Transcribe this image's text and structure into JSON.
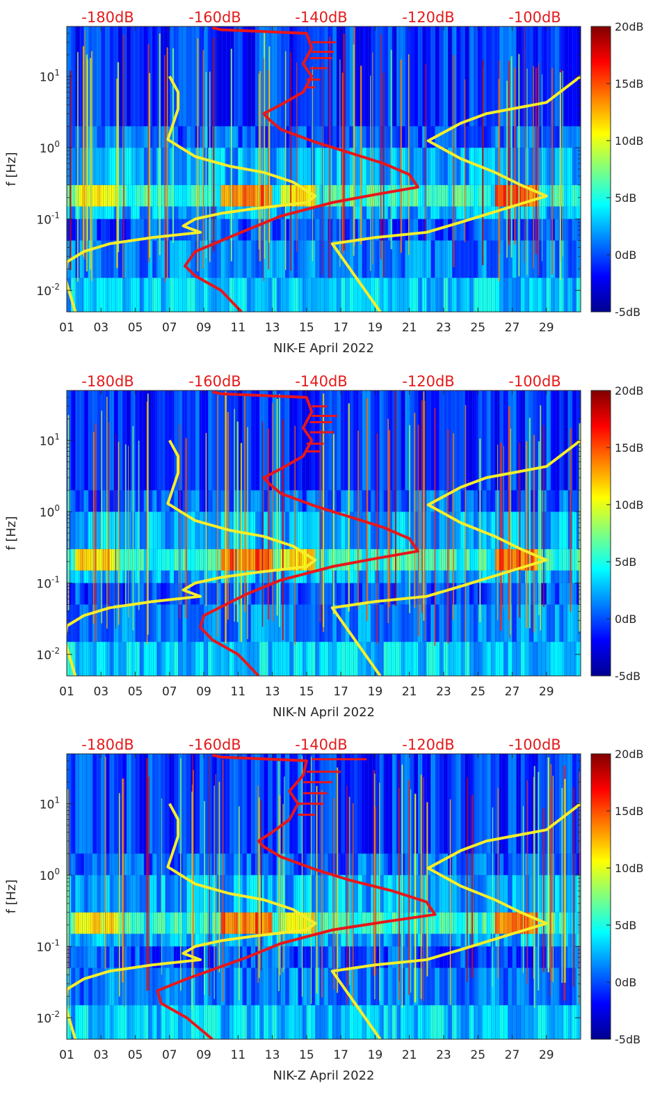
{
  "colors": {
    "yellow_curve": "#f7ee2a",
    "red_curve": "#e8161a",
    "top_label": "#e41a1a",
    "axis": "#262626"
  },
  "chart_data": [
    {
      "type": "heatmap",
      "station": "NIK-E",
      "xlabel": "NIK-E April 2022",
      "ylabel": "f [Hz]",
      "x_ticks": [
        "01",
        "03",
        "05",
        "07",
        "09",
        "11",
        "13",
        "15",
        "17",
        "19",
        "21",
        "23",
        "25",
        "27",
        "29"
      ],
      "y_ticks": [
        "10-2",
        "10-1",
        "100",
        "101"
      ],
      "y_scale": "log",
      "ylim": [
        0.005,
        50
      ],
      "xlim": [
        1,
        31
      ],
      "top_scale_labels": [
        "-180dB",
        "-160dB",
        "-140dB",
        "-120dB",
        "-100dB"
      ],
      "colorbar": {
        "ticks": [
          "20dB",
          "15dB",
          "10dB",
          "5dB",
          "0dB",
          "-5dB"
        ],
        "range": [
          -5,
          20
        ],
        "colormap": "jet"
      },
      "yellow_curve": [
        [
          7.0,
          10
        ],
        [
          7.5,
          6
        ],
        [
          7.5,
          3.5
        ],
        [
          6.9,
          1.3
        ],
        [
          8.5,
          0.75
        ],
        [
          10.5,
          0.55
        ],
        [
          12.5,
          0.45
        ],
        [
          14.2,
          0.33
        ],
        [
          15.5,
          0.21
        ],
        [
          15.0,
          0.17
        ],
        [
          12.0,
          0.14
        ],
        [
          10.0,
          0.12
        ],
        [
          8.5,
          0.1
        ],
        [
          7.8,
          0.08
        ],
        [
          8.8,
          0.065
        ],
        [
          6.0,
          0.055
        ],
        [
          3.5,
          0.045
        ],
        [
          2.0,
          0.035
        ],
        [
          1.0,
          0.025
        ],
        [
          0.9,
          0.015
        ],
        [
          1.5,
          0.005
        ]
      ],
      "yellow_curve_right": [
        [
          19.3,
          0.005
        ],
        [
          16.5,
          0.045
        ],
        [
          19.0,
          0.055
        ],
        [
          22.0,
          0.065
        ],
        [
          24.0,
          0.09
        ],
        [
          27.0,
          0.15
        ],
        [
          29.0,
          0.21
        ],
        [
          27.5,
          0.3
        ],
        [
          26.0,
          0.45
        ],
        [
          24.0,
          0.7
        ],
        [
          22.1,
          1.25
        ],
        [
          24.0,
          2.2
        ],
        [
          25.5,
          3.0
        ],
        [
          29.0,
          4.3
        ],
        [
          31.0,
          10
        ]
      ],
      "red_curve": [
        [
          11.2,
          0.005
        ],
        [
          10.0,
          0.01
        ],
        [
          8.5,
          0.016
        ],
        [
          7.9,
          0.022
        ],
        [
          8.5,
          0.035
        ],
        [
          11.5,
          0.07
        ],
        [
          13.5,
          0.11
        ],
        [
          16.5,
          0.17
        ],
        [
          19.0,
          0.22
        ],
        [
          21.5,
          0.28
        ],
        [
          21.0,
          0.42
        ],
        [
          19.5,
          0.6
        ],
        [
          17.5,
          0.85
        ],
        [
          15.5,
          1.2
        ],
        [
          13.5,
          1.8
        ],
        [
          12.8,
          2.5
        ],
        [
          12.5,
          3.0
        ],
        [
          13.5,
          4.0
        ],
        [
          14.8,
          6.0
        ],
        [
          15.3,
          10
        ],
        [
          14.8,
          15
        ],
        [
          15.3,
          25
        ],
        [
          15.0,
          40
        ],
        [
          10.0,
          45
        ],
        [
          9.5,
          48
        ]
      ],
      "red_spikes": [
        [
          15.0,
          7.0,
          15.5
        ],
        [
          15.0,
          9.0,
          15.8
        ],
        [
          15.2,
          13.0,
          16.2
        ],
        [
          15.2,
          18.0,
          16.5
        ],
        [
          15.3,
          22.0,
          16.6
        ],
        [
          15.3,
          30.0,
          16.7
        ]
      ]
    },
    {
      "type": "heatmap",
      "station": "NIK-N",
      "xlabel": "NIK-N April 2022",
      "ylabel": "f [Hz]",
      "x_ticks": [
        "01",
        "03",
        "05",
        "07",
        "09",
        "11",
        "13",
        "15",
        "17",
        "19",
        "21",
        "23",
        "25",
        "27",
        "29"
      ],
      "y_ticks": [
        "10-2",
        "10-1",
        "100",
        "101"
      ],
      "y_scale": "log",
      "ylim": [
        0.005,
        50
      ],
      "xlim": [
        1,
        31
      ],
      "top_scale_labels": [
        "-180dB",
        "-160dB",
        "-140dB",
        "-120dB",
        "-100dB"
      ],
      "colorbar": {
        "ticks": [
          "20dB",
          "15dB",
          "10dB",
          "5dB",
          "0dB",
          "-5dB"
        ],
        "range": [
          -5,
          20
        ],
        "colormap": "jet"
      },
      "yellow_curve": [
        [
          7.0,
          10
        ],
        [
          7.5,
          6
        ],
        [
          7.5,
          3.5
        ],
        [
          6.9,
          1.3
        ],
        [
          8.5,
          0.75
        ],
        [
          10.5,
          0.55
        ],
        [
          12.5,
          0.45
        ],
        [
          14.2,
          0.33
        ],
        [
          15.5,
          0.21
        ],
        [
          15.0,
          0.17
        ],
        [
          12.0,
          0.14
        ],
        [
          10.0,
          0.12
        ],
        [
          8.5,
          0.1
        ],
        [
          7.8,
          0.08
        ],
        [
          8.8,
          0.065
        ],
        [
          6.0,
          0.055
        ],
        [
          3.5,
          0.045
        ],
        [
          2.0,
          0.035
        ],
        [
          1.0,
          0.025
        ],
        [
          0.9,
          0.015
        ],
        [
          1.5,
          0.005
        ]
      ],
      "yellow_curve_right": [
        [
          19.3,
          0.005
        ],
        [
          16.5,
          0.045
        ],
        [
          19.0,
          0.055
        ],
        [
          22.0,
          0.065
        ],
        [
          24.0,
          0.09
        ],
        [
          27.0,
          0.15
        ],
        [
          29.0,
          0.21
        ],
        [
          27.5,
          0.3
        ],
        [
          26.0,
          0.45
        ],
        [
          24.0,
          0.7
        ],
        [
          22.1,
          1.25
        ],
        [
          24.0,
          2.2
        ],
        [
          25.5,
          3.0
        ],
        [
          29.0,
          4.3
        ],
        [
          31.0,
          10
        ]
      ],
      "red_curve": [
        [
          12.2,
          0.005
        ],
        [
          11.0,
          0.01
        ],
        [
          9.5,
          0.016
        ],
        [
          8.8,
          0.024
        ],
        [
          9.0,
          0.035
        ],
        [
          11.5,
          0.07
        ],
        [
          13.5,
          0.11
        ],
        [
          16.5,
          0.17
        ],
        [
          19.0,
          0.22
        ],
        [
          21.5,
          0.28
        ],
        [
          21.0,
          0.42
        ],
        [
          19.5,
          0.6
        ],
        [
          17.5,
          0.85
        ],
        [
          15.5,
          1.2
        ],
        [
          13.5,
          1.8
        ],
        [
          12.8,
          2.5
        ],
        [
          12.5,
          3.0
        ],
        [
          13.5,
          4.0
        ],
        [
          14.8,
          6.0
        ],
        [
          15.3,
          10
        ],
        [
          14.8,
          15
        ],
        [
          15.3,
          25
        ],
        [
          15.0,
          40
        ],
        [
          10.0,
          45
        ],
        [
          9.5,
          48
        ]
      ],
      "red_spikes": [
        [
          15.0,
          7.0,
          15.8
        ],
        [
          15.0,
          9.0,
          16.0
        ],
        [
          15.2,
          13.0,
          16.6
        ],
        [
          15.2,
          18.0,
          16.5
        ],
        [
          15.3,
          22.0,
          16.8
        ],
        [
          15.3,
          30.0,
          16.2
        ]
      ]
    },
    {
      "type": "heatmap",
      "station": "NIK-Z",
      "xlabel": "NIK-Z April 2022",
      "ylabel": "f [Hz]",
      "x_ticks": [
        "01",
        "03",
        "05",
        "07",
        "09",
        "11",
        "13",
        "15",
        "17",
        "19",
        "21",
        "23",
        "25",
        "27",
        "29"
      ],
      "y_ticks": [
        "10-2",
        "10-1",
        "100",
        "101"
      ],
      "y_scale": "log",
      "ylim": [
        0.005,
        50
      ],
      "xlim": [
        1,
        31
      ],
      "top_scale_labels": [
        "-180dB",
        "-160dB",
        "-140dB",
        "-120dB",
        "-100dB"
      ],
      "colorbar": {
        "ticks": [
          "20dB",
          "15dB",
          "10dB",
          "5dB",
          "0dB",
          "-5dB"
        ],
        "range": [
          -5,
          20
        ],
        "colormap": "jet"
      },
      "yellow_curve": [
        [
          7.0,
          10
        ],
        [
          7.5,
          6
        ],
        [
          7.5,
          3.5
        ],
        [
          6.9,
          1.3
        ],
        [
          8.5,
          0.75
        ],
        [
          10.5,
          0.55
        ],
        [
          12.5,
          0.45
        ],
        [
          14.2,
          0.33
        ],
        [
          15.5,
          0.21
        ],
        [
          15.0,
          0.17
        ],
        [
          12.0,
          0.14
        ],
        [
          10.0,
          0.12
        ],
        [
          8.5,
          0.1
        ],
        [
          7.8,
          0.08
        ],
        [
          8.8,
          0.065
        ],
        [
          6.0,
          0.055
        ],
        [
          3.5,
          0.045
        ],
        [
          2.0,
          0.035
        ],
        [
          1.0,
          0.025
        ],
        [
          0.9,
          0.015
        ],
        [
          1.5,
          0.005
        ]
      ],
      "yellow_curve_right": [
        [
          19.3,
          0.005
        ],
        [
          16.5,
          0.045
        ],
        [
          19.0,
          0.055
        ],
        [
          22.0,
          0.065
        ],
        [
          24.0,
          0.09
        ],
        [
          27.0,
          0.15
        ],
        [
          29.0,
          0.21
        ],
        [
          27.5,
          0.3
        ],
        [
          26.0,
          0.45
        ],
        [
          24.0,
          0.7
        ],
        [
          22.1,
          1.25
        ],
        [
          24.0,
          2.2
        ],
        [
          25.5,
          3.0
        ],
        [
          29.0,
          4.3
        ],
        [
          31.0,
          10
        ]
      ],
      "red_curve": [
        [
          9.5,
          0.005
        ],
        [
          8.0,
          0.01
        ],
        [
          6.5,
          0.016
        ],
        [
          6.3,
          0.024
        ],
        [
          8.0,
          0.035
        ],
        [
          11.5,
          0.07
        ],
        [
          13.5,
          0.11
        ],
        [
          16.5,
          0.17
        ],
        [
          19.5,
          0.22
        ],
        [
          22.5,
          0.28
        ],
        [
          22.0,
          0.42
        ],
        [
          20.0,
          0.6
        ],
        [
          17.5,
          0.85
        ],
        [
          15.5,
          1.2
        ],
        [
          13.5,
          1.8
        ],
        [
          12.5,
          2.5
        ],
        [
          12.2,
          3.0
        ],
        [
          13.0,
          4.0
        ],
        [
          14.0,
          6.0
        ],
        [
          14.5,
          10
        ],
        [
          14.0,
          15
        ],
        [
          14.8,
          25
        ],
        [
          15.0,
          40
        ],
        [
          10.0,
          45
        ],
        [
          9.5,
          48
        ]
      ],
      "red_spikes": [
        [
          14.5,
          7.0,
          15.5
        ],
        [
          14.5,
          10.0,
          16.0
        ],
        [
          14.8,
          14.0,
          16.2
        ],
        [
          14.8,
          20.0,
          16.5
        ],
        [
          15.0,
          28.0,
          17.0
        ],
        [
          15.3,
          42.0,
          18.5
        ]
      ]
    }
  ]
}
